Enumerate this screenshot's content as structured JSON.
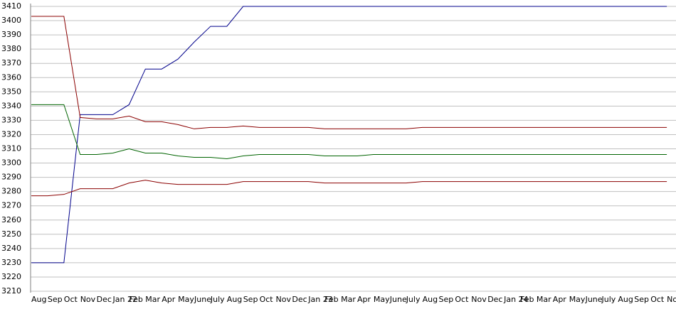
{
  "chart_data": {
    "type": "line",
    "categories": [
      "Aug",
      "Sep",
      "Oct",
      "Nov",
      "Dec",
      "Jan 22",
      "Feb",
      "Mar",
      "Apr",
      "May",
      "June",
      "July",
      "Aug",
      "Sep",
      "Oct",
      "Nov",
      "Dec",
      "Jan 23",
      "Feb",
      "Mar",
      "Apr",
      "May",
      "June",
      "July",
      "Aug",
      "Sep",
      "Oct",
      "Nov",
      "Dec",
      "Jan 24",
      "Feb",
      "Mar",
      "Apr",
      "May",
      "June",
      "July",
      "Aug",
      "Sep",
      "Oct",
      "Nov"
    ],
    "series": [
      {
        "color": "#00008b",
        "values": [
          3230,
          3230,
          3230,
          3334,
          3334,
          3334,
          3341,
          3366,
          3366,
          3373,
          3385,
          3396,
          3396,
          3410,
          3410,
          3410,
          3410,
          3410,
          3410,
          3410,
          3410,
          3410,
          3410,
          3410,
          3410,
          3410,
          3410,
          3410,
          3410,
          3410,
          3410,
          3410,
          3410,
          3410,
          3410,
          3410,
          3410,
          3410,
          3410,
          3410
        ]
      },
      {
        "color": "#8b0000",
        "values": [
          3403,
          3403,
          3403,
          3332,
          3331,
          3331,
          3333,
          3329,
          3329,
          3327,
          3324,
          3325,
          3325,
          3326,
          3325,
          3325,
          3325,
          3325,
          3324,
          3324,
          3324,
          3324,
          3324,
          3324,
          3325,
          3325,
          3325,
          3325,
          3325,
          3325,
          3325,
          3325,
          3325,
          3325,
          3325,
          3325,
          3325,
          3325,
          3325,
          3325
        ]
      },
      {
        "color": "#006400",
        "values": [
          3341,
          3341,
          3341,
          3306,
          3306,
          3307,
          3310,
          3307,
          3307,
          3305,
          3304,
          3304,
          3303,
          3305,
          3306,
          3306,
          3306,
          3306,
          3305,
          3305,
          3305,
          3306,
          3306,
          3306,
          3306,
          3306,
          3306,
          3306,
          3306,
          3306,
          3306,
          3306,
          3306,
          3306,
          3306,
          3306,
          3306,
          3306,
          3306,
          3306
        ]
      },
      {
        "color": "#8b0000",
        "values": [
          3277,
          3277,
          3278,
          3282,
          3282,
          3282,
          3286,
          3288,
          3286,
          3285,
          3285,
          3285,
          3285,
          3287,
          3287,
          3287,
          3287,
          3287,
          3286,
          3286,
          3286,
          3286,
          3286,
          3286,
          3287,
          3287,
          3287,
          3287,
          3287,
          3287,
          3287,
          3287,
          3287,
          3287,
          3287,
          3287,
          3287,
          3287,
          3287,
          3287
        ]
      }
    ],
    "ylim": [
      3210,
      3410
    ],
    "yticks": [
      3210,
      3220,
      3230,
      3240,
      3250,
      3260,
      3270,
      3280,
      3290,
      3300,
      3310,
      3320,
      3330,
      3340,
      3350,
      3360,
      3370,
      3380,
      3390,
      3400,
      3410
    ],
    "grid": true
  }
}
